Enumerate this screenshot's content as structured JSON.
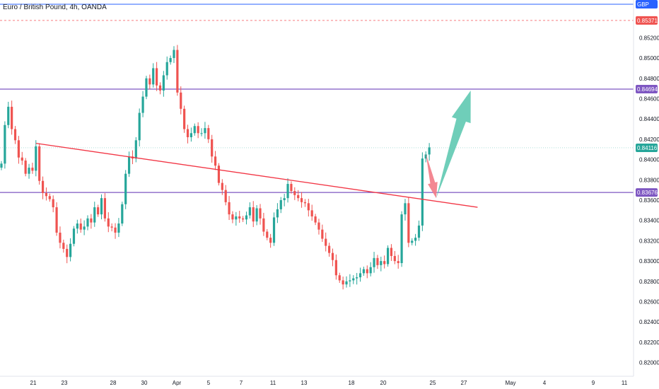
{
  "colors": {
    "up": "#26a69a",
    "down": "#ef5350",
    "level_line": "#7e57c2",
    "trend_line": "#f23645",
    "top_line": "#2962ff",
    "dashed_line": "#f77c80",
    "arrow_up": "#5fc9b1",
    "arrow_down": "#f27a86",
    "current_price": "#26a69a",
    "last_price_tag": "#ef5350",
    "top_tag": "#2962ff",
    "axis_text": "#131722"
  },
  "chart_data": {
    "type": "candlestick",
    "title": "Euro / British Pound, 4h, OANDA",
    "y_axis": {
      "range": [
        0.819,
        0.8553
      ],
      "ticks": [
        "0.85200",
        "0.85000",
        "0.84800",
        "0.84600",
        "0.84400",
        "0.84200",
        "0.84000",
        "0.83800",
        "0.83600",
        "0.83400",
        "0.83200",
        "0.83000",
        "0.82800",
        "0.82600",
        "0.82400",
        "0.82200",
        "0.82000"
      ]
    },
    "x_axis": {
      "labels": [
        "21",
        "23",
        "28",
        "30",
        "Apr",
        "5",
        "7",
        "11",
        "13",
        "18",
        "20",
        "25",
        "27",
        "May",
        "4",
        "9",
        "11"
      ]
    },
    "price_tags": [
      {
        "label": "GBP",
        "value": 0.8553,
        "style": "top"
      },
      {
        "label": "0.85371",
        "value": 0.85371,
        "style": "dashed"
      },
      {
        "label": "0.84694",
        "value": 0.84694,
        "style": "level"
      },
      {
        "label": "0.84116",
        "value": 0.84116,
        "style": "current"
      },
      {
        "label": "0.83676",
        "value": 0.83676,
        "style": "level"
      }
    ],
    "horizontal_levels": [
      0.84694,
      0.83676
    ],
    "trend_line": {
      "from": {
        "bar": 10,
        "price": 0.8416
      },
      "to": {
        "bar": 138,
        "price": 0.8353
      }
    },
    "arrows": [
      {
        "direction": "down",
        "from": {
          "bar": 123,
          "price": 0.8406
        },
        "to": {
          "bar": 126,
          "price": 0.8362
        }
      },
      {
        "direction": "up",
        "from": {
          "bar": 126,
          "price": 0.8362
        },
        "to": {
          "bar": 136,
          "price": 0.8468
        }
      }
    ],
    "close_series": [
      0.8396,
      0.8434,
      0.8452,
      0.843,
      0.8419,
      0.8402,
      0.8399,
      0.8386,
      0.8392,
      0.8389,
      0.8413,
      0.8379,
      0.8367,
      0.8364,
      0.8361,
      0.8353,
      0.8328,
      0.8318,
      0.8312,
      0.8304,
      0.8317,
      0.8332,
      0.8337,
      0.8331,
      0.8334,
      0.8342,
      0.8338,
      0.8353,
      0.8346,
      0.8362,
      0.8342,
      0.8334,
      0.8333,
      0.8328,
      0.8337,
      0.8356,
      0.8386,
      0.8403,
      0.8401,
      0.8419,
      0.8446,
      0.8462,
      0.848,
      0.8474,
      0.849,
      0.8473,
      0.8468,
      0.8483,
      0.8496,
      0.85,
      0.8508,
      0.8466,
      0.845,
      0.843,
      0.8422,
      0.8426,
      0.8433,
      0.8426,
      0.8426,
      0.8431,
      0.842,
      0.8403,
      0.8394,
      0.8377,
      0.837,
      0.8358,
      0.8346,
      0.8341,
      0.8344,
      0.8342,
      0.8341,
      0.8345,
      0.8353,
      0.8339,
      0.8352,
      0.8342,
      0.8329,
      0.8323,
      0.8318,
      0.8343,
      0.8351,
      0.836,
      0.8362,
      0.8376,
      0.8369,
      0.8365,
      0.8362,
      0.8358,
      0.8357,
      0.835,
      0.8344,
      0.8338,
      0.8331,
      0.8322,
      0.8315,
      0.8308,
      0.8301,
      0.8286,
      0.8281,
      0.8277,
      0.828,
      0.8281,
      0.8283,
      0.8284,
      0.8288,
      0.8292,
      0.8288,
      0.8294,
      0.8303,
      0.8296,
      0.83,
      0.8297,
      0.8313,
      0.8305,
      0.83,
      0.8298,
      0.8346,
      0.8357,
      0.8318,
      0.832,
      0.8323,
      0.8335,
      0.8401,
      0.8405,
      0.8412
    ]
  }
}
